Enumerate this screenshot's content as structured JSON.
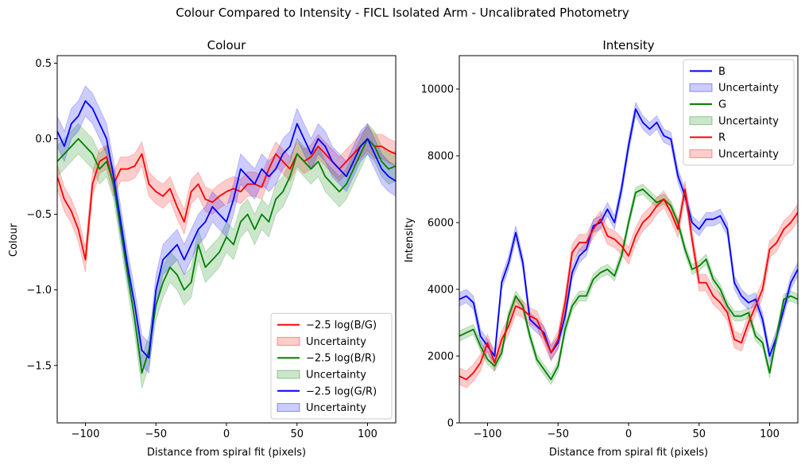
{
  "figure": {
    "title": "Colour Compared to Intensity - FICL Isolated Arm - Uncalibrated Photometry"
  },
  "chart_data": [
    {
      "type": "line",
      "title": "Colour",
      "xlabel": "Distance from spiral fit (pixels)",
      "ylabel": "Colour",
      "xlim": [
        -120,
        120
      ],
      "ylim": [
        -1.88,
        0.55
      ],
      "xticks": [
        -100,
        -50,
        0,
        50,
        100
      ],
      "xtick_labels": [
        "−100",
        "−50",
        "0",
        "50",
        "100"
      ],
      "yticks": [
        0.5,
        0.0,
        -0.5,
        -1.0,
        -1.5
      ],
      "ytick_labels": [
        "0.5",
        "0.0",
        "−0.5",
        "−1.0",
        "−1.5"
      ],
      "grid": false,
      "legend_position": "lower-right",
      "legend": [
        {
          "kind": "line",
          "label": "−2.5 log(B/G)",
          "color": "#ff0000"
        },
        {
          "kind": "patch",
          "label": "Uncertainty",
          "color": "#ff0000"
        },
        {
          "kind": "line",
          "label": "−2.5 log(B/R)",
          "color": "#008000"
        },
        {
          "kind": "patch",
          "label": "Uncertainty",
          "color": "#008000"
        },
        {
          "kind": "line",
          "label": "−2.5 log(G/R)",
          "color": "#0000ff"
        },
        {
          "kind": "patch",
          "label": "Uncertainty",
          "color": "#0000ff"
        }
      ],
      "x": [
        -120,
        -115,
        -110,
        -105,
        -100,
        -95,
        -90,
        -85,
        -80,
        -75,
        -70,
        -65,
        -60,
        -55,
        -50,
        -45,
        -40,
        -35,
        -30,
        -25,
        -20,
        -15,
        -10,
        -5,
        0,
        5,
        10,
        15,
        20,
        25,
        30,
        35,
        40,
        45,
        50,
        55,
        60,
        65,
        70,
        75,
        80,
        85,
        90,
        95,
        100,
        105,
        110,
        115,
        120
      ],
      "series": [
        {
          "name": "−2.5 log(B/G)",
          "color": "#ff0000",
          "values": [
            -0.25,
            -0.4,
            -0.48,
            -0.6,
            -0.8,
            -0.3,
            -0.15,
            -0.12,
            -0.3,
            -0.2,
            -0.2,
            -0.18,
            -0.1,
            -0.3,
            -0.35,
            -0.38,
            -0.33,
            -0.45,
            -0.55,
            -0.35,
            -0.3,
            -0.4,
            -0.42,
            -0.38,
            -0.35,
            -0.33,
            -0.35,
            -0.3,
            -0.3,
            -0.32,
            -0.2,
            -0.1,
            -0.15,
            -0.2,
            -0.1,
            -0.15,
            -0.12,
            -0.05,
            -0.1,
            -0.15,
            -0.2,
            -0.15,
            -0.1,
            -0.05,
            0.0,
            -0.05,
            -0.05,
            -0.08,
            -0.1
          ],
          "uncertainty": 0.08
        },
        {
          "name": "−2.5 log(B/R)",
          "color": "#008000",
          "values": [
            -0.15,
            -0.1,
            -0.05,
            0.0,
            -0.05,
            -0.1,
            -0.2,
            -0.15,
            -0.3,
            -0.6,
            -0.9,
            -1.2,
            -1.55,
            -1.4,
            -1.1,
            -0.95,
            -0.85,
            -0.9,
            -1.0,
            -0.95,
            -0.7,
            -0.85,
            -0.8,
            -0.75,
            -0.65,
            -0.7,
            -0.55,
            -0.5,
            -0.6,
            -0.5,
            -0.55,
            -0.4,
            -0.35,
            -0.25,
            -0.1,
            -0.15,
            -0.2,
            -0.15,
            -0.25,
            -0.3,
            -0.35,
            -0.3,
            -0.2,
            -0.1,
            0.0,
            -0.05,
            -0.15,
            -0.2,
            -0.18
          ],
          "uncertainty": 0.1
        },
        {
          "name": "−2.5 log(G/R)",
          "color": "#0000ff",
          "values": [
            0.05,
            -0.05,
            0.1,
            0.15,
            0.25,
            0.2,
            0.1,
            0.0,
            -0.25,
            -0.55,
            -0.85,
            -1.1,
            -1.4,
            -1.45,
            -1.0,
            -0.8,
            -0.75,
            -0.7,
            -0.8,
            -0.7,
            -0.6,
            -0.55,
            -0.45,
            -0.5,
            -0.55,
            -0.4,
            -0.2,
            -0.25,
            -0.3,
            -0.2,
            -0.25,
            -0.2,
            -0.1,
            -0.05,
            0.1,
            0.0,
            -0.1,
            0.0,
            -0.05,
            -0.15,
            -0.2,
            -0.25,
            -0.15,
            -0.05,
            0.0,
            -0.1,
            -0.2,
            -0.25,
            -0.28
          ],
          "uncertainty": 0.1
        }
      ]
    },
    {
      "type": "line",
      "title": "Intensity",
      "xlabel": "Distance from spiral fit (pixels)",
      "ylabel": "Intensity",
      "xlim": [
        -120,
        120
      ],
      "ylim": [
        0,
        11000
      ],
      "xticks": [
        -100,
        -50,
        0,
        50,
        100
      ],
      "xtick_labels": [
        "−100",
        "−50",
        "0",
        "50",
        "100"
      ],
      "yticks": [
        0,
        2000,
        4000,
        6000,
        8000,
        10000
      ],
      "ytick_labels": [
        "0",
        "2000",
        "4000",
        "6000",
        "8000",
        "10000"
      ],
      "grid": false,
      "legend_position": "upper-right",
      "legend": [
        {
          "kind": "line",
          "label": "B",
          "color": "#0000ff"
        },
        {
          "kind": "patch",
          "label": "Uncertainty",
          "color": "#0000ff"
        },
        {
          "kind": "line",
          "label": "G",
          "color": "#008000"
        },
        {
          "kind": "patch",
          "label": "Uncertainty",
          "color": "#008000"
        },
        {
          "kind": "line",
          "label": "R",
          "color": "#ff0000"
        },
        {
          "kind": "patch",
          "label": "Uncertainty",
          "color": "#ff0000"
        }
      ],
      "x": [
        -120,
        -115,
        -110,
        -105,
        -100,
        -95,
        -90,
        -85,
        -80,
        -75,
        -70,
        -65,
        -60,
        -55,
        -50,
        -45,
        -40,
        -35,
        -30,
        -25,
        -20,
        -15,
        -10,
        -5,
        0,
        5,
        10,
        15,
        20,
        25,
        30,
        35,
        40,
        45,
        50,
        55,
        60,
        65,
        70,
        75,
        80,
        85,
        90,
        95,
        100,
        105,
        110,
        115,
        120
      ],
      "series": [
        {
          "name": "B",
          "color": "#0000ff",
          "values": [
            3700,
            3800,
            3600,
            2600,
            2300,
            2000,
            4200,
            4800,
            5700,
            4800,
            3100,
            2900,
            2700,
            2100,
            2400,
            3200,
            4500,
            5000,
            5200,
            5900,
            6000,
            6400,
            6000,
            7000,
            8300,
            9400,
            9000,
            8800,
            9000,
            8600,
            8500,
            7400,
            6800,
            6000,
            5800,
            6100,
            6100,
            6200,
            5800,
            4200,
            3800,
            3600,
            3700,
            3100,
            2000,
            2600,
            3400,
            4200,
            4600
          ],
          "uncertainty": 200
        },
        {
          "name": "G",
          "color": "#008000",
          "values": [
            2600,
            2700,
            2800,
            2300,
            1900,
            1700,
            2100,
            3200,
            3800,
            3500,
            2600,
            1900,
            1600,
            1300,
            1700,
            2800,
            3500,
            3800,
            3800,
            4300,
            4500,
            4600,
            4400,
            5000,
            6000,
            6900,
            7000,
            6800,
            6600,
            6700,
            6500,
            6000,
            5200,
            4600,
            4700,
            4900,
            4300,
            4000,
            3500,
            3200,
            3200,
            3300,
            2600,
            2400,
            1500,
            2600,
            3700,
            3800,
            3700
          ],
          "uncertainty": 150
        },
        {
          "name": "R",
          "color": "#ff0000",
          "values": [
            1400,
            1300,
            1500,
            1800,
            2400,
            1800,
            2500,
            2900,
            3500,
            3400,
            3200,
            3100,
            2600,
            2100,
            2500,
            3600,
            5100,
            5400,
            5400,
            5800,
            6100,
            5600,
            5500,
            5300,
            5000,
            5600,
            6000,
            6200,
            6500,
            6700,
            6300,
            5800,
            7000,
            5500,
            4200,
            4200,
            3800,
            3600,
            3300,
            2500,
            2400,
            3000,
            3500,
            4000,
            5200,
            5400,
            5800,
            6000,
            6300
          ],
          "uncertainty": 250
        }
      ]
    }
  ]
}
